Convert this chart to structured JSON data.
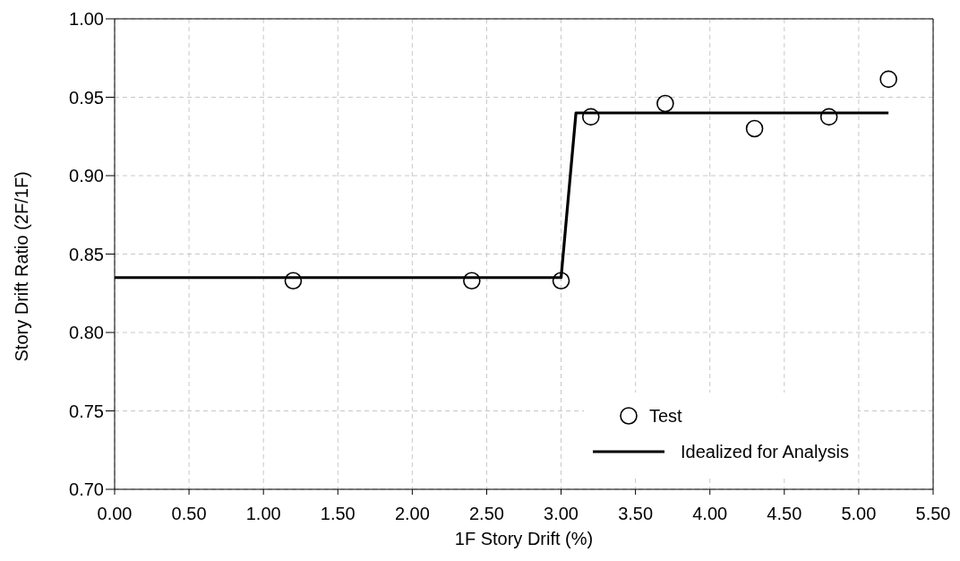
{
  "chart_data": {
    "type": "scatter",
    "xlabel": "1F Story Drift  (%)",
    "ylabel": "Story Drift Ratio (2F/1F)",
    "x": [
      1.2,
      2.4,
      3.0,
      3.2,
      3.7,
      4.3,
      4.8,
      5.2
    ],
    "series": [
      {
        "name": "Test",
        "color": "#000000",
        "marker": "circle",
        "values": [
          0.833,
          0.833,
          0.833,
          0.9375,
          0.946,
          0.93,
          0.9375,
          0.9615
        ]
      },
      {
        "name": "Idealized for Analysis",
        "type": "line",
        "color": "#000000",
        "marker": "none",
        "line_style": "solid",
        "x": [
          0,
          3.0,
          3.1,
          5.2
        ],
        "values": [
          0.835,
          0.835,
          0.94,
          0.94
        ]
      }
    ],
    "xlim": [
      0,
      5.5
    ],
    "xticks": [
      {
        "value": 0,
        "label": "0.00"
      },
      {
        "value": 0.5,
        "label": "0.50"
      },
      {
        "value": 1,
        "label": "1.00"
      },
      {
        "value": 1.5,
        "label": "1.50"
      },
      {
        "value": 2,
        "label": "2.00"
      },
      {
        "value": 2.5,
        "label": "2.50"
      },
      {
        "value": 3,
        "label": "3.00"
      },
      {
        "value": 3.5,
        "label": "3.50"
      },
      {
        "value": 4,
        "label": "4.00"
      },
      {
        "value": 4.5,
        "label": "4.50"
      },
      {
        "value": 5,
        "label": "5.00"
      },
      {
        "value": 5.5,
        "label": "5.50"
      }
    ],
    "ylim": [
      0.7,
      1.0
    ],
    "yticks": [
      {
        "value": 0.7,
        "label": "0.70"
      },
      {
        "value": 0.75,
        "label": "0.75"
      },
      {
        "value": 0.8,
        "label": "0.80"
      },
      {
        "value": 0.85,
        "label": "0.85"
      },
      {
        "value": 0.9,
        "label": "0.90"
      },
      {
        "value": 0.95,
        "label": "0.95"
      },
      {
        "value": 1.0,
        "label": "1.00"
      }
    ],
    "grid": true,
    "legend": "bottom right"
  }
}
